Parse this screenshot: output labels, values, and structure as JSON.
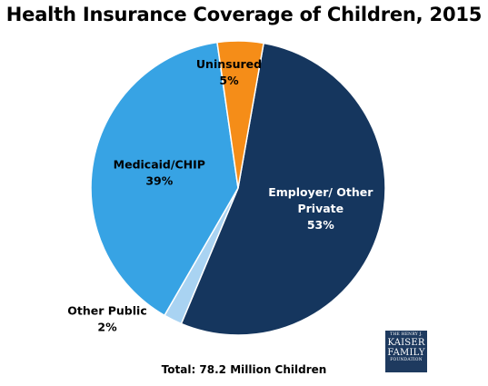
{
  "chart_data": {
    "type": "pie",
    "title": "Health Insurance Coverage of Children, 2015",
    "slices": [
      {
        "label": "Employer/ Other Private",
        "label_lines": [
          "Employer/ Other",
          "Private"
        ],
        "value": 53,
        "value_text": "53%",
        "color": "#15365e"
      },
      {
        "label": "Other Public",
        "label_lines": [
          "Other Public"
        ],
        "value": 2,
        "value_text": "2%",
        "color": "#a9d3f2"
      },
      {
        "label": "Medicaid/CHIP",
        "label_lines": [
          "Medicaid/CHIP"
        ],
        "value": 39,
        "value_text": "39%",
        "color": "#37a3e4"
      },
      {
        "label": "Uninsured",
        "label_lines": [
          "Uninsured"
        ],
        "value": 5,
        "value_text": "5%",
        "color": "#f58d18"
      }
    ],
    "footnote": "Total: 78.2 Million Children"
  },
  "logo": {
    "line1": "THE HENRY J.",
    "line2": "KAISER",
    "line3": "FAMILY",
    "line4": "FOUNDATION"
  }
}
